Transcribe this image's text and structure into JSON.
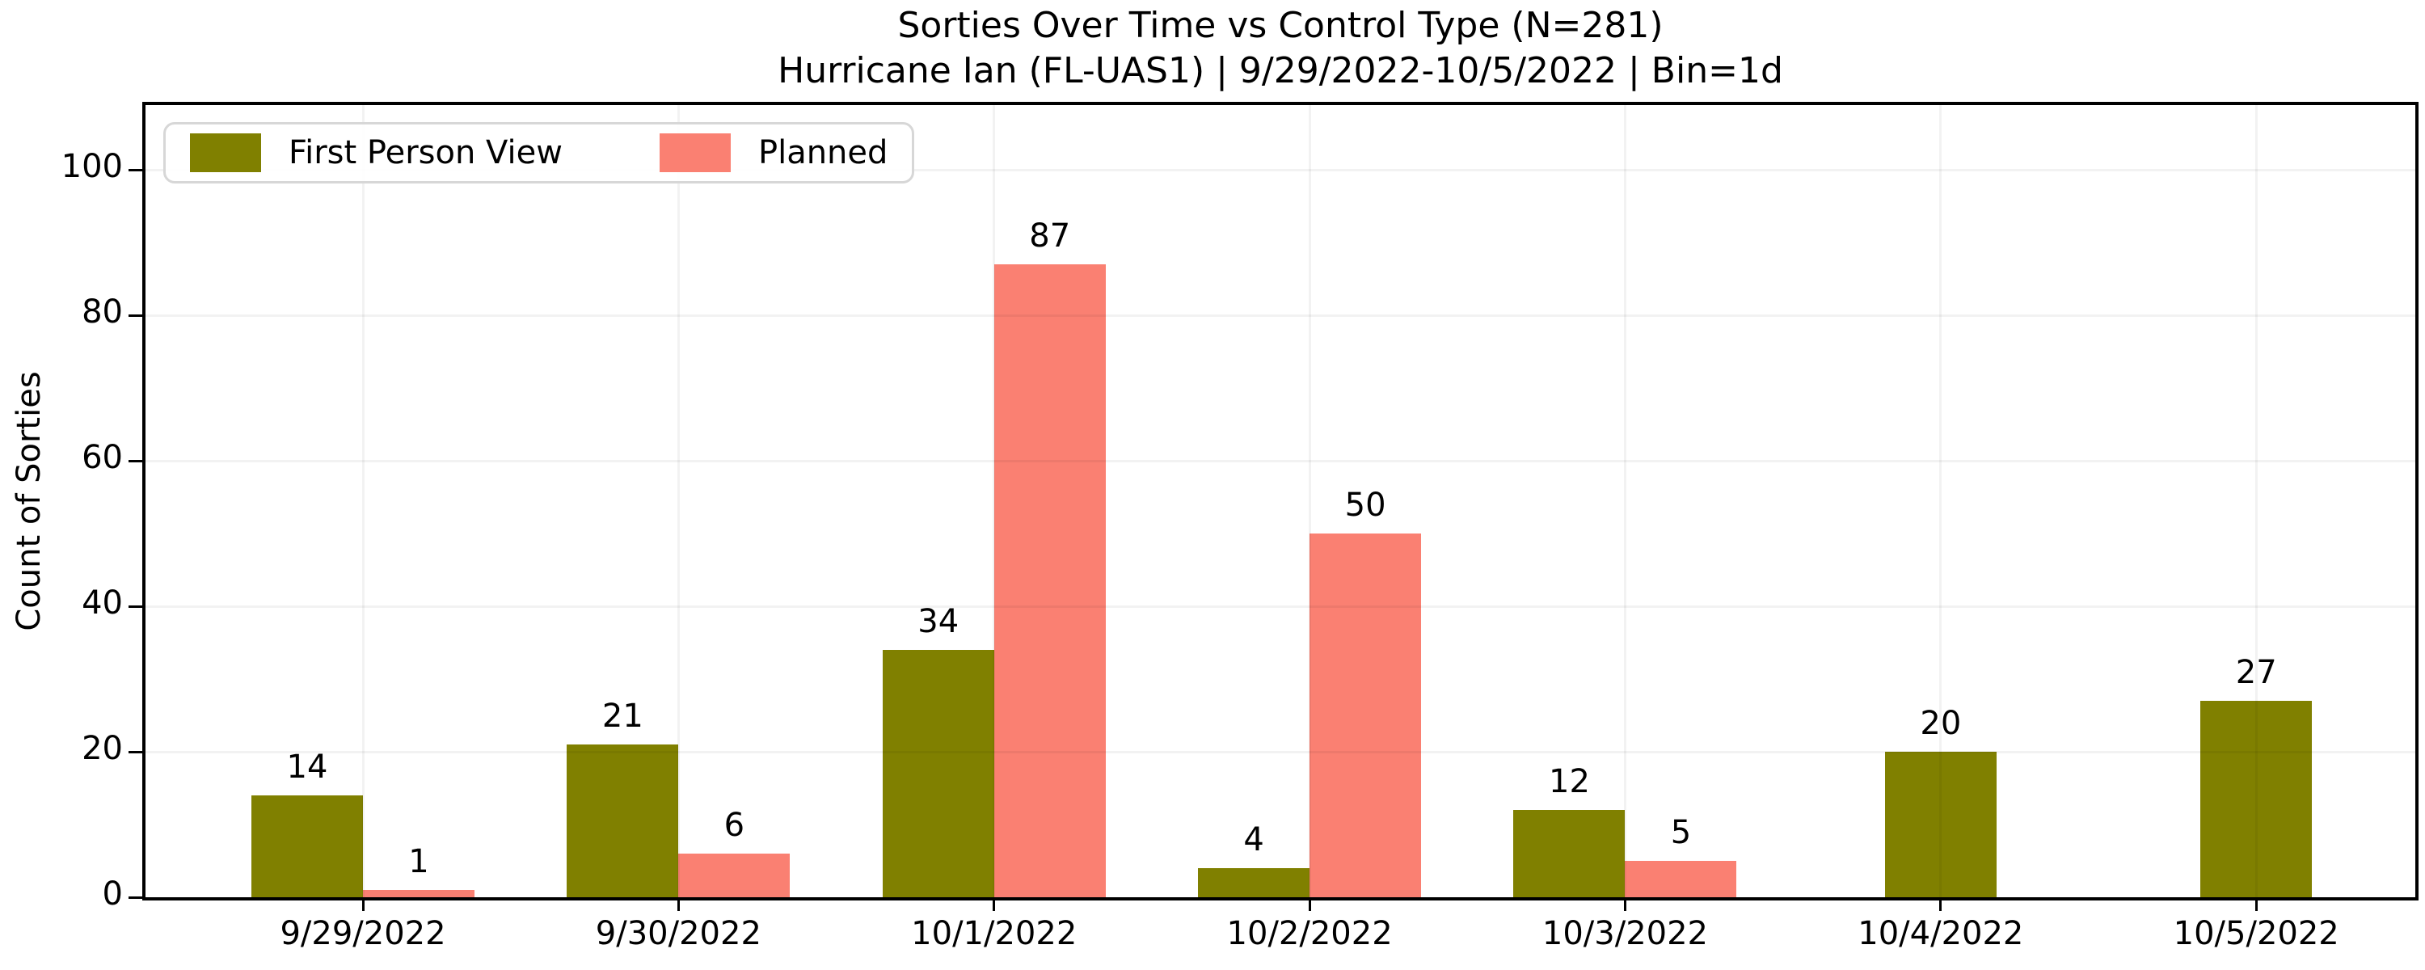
{
  "chart_data": {
    "type": "bar",
    "title": "Sorties Over Time vs Control Type (N=281)",
    "subtitle": "Hurricane Ian (FL-UAS1) | 9/29/2022-10/5/2022 | Bin=1d",
    "ylabel": "Count of Sorties",
    "xlabel": "",
    "categories": [
      "9/29/2022",
      "9/30/2022",
      "10/1/2022",
      "10/2/2022",
      "10/3/2022",
      "10/4/2022",
      "10/5/2022"
    ],
    "series": [
      {
        "name": "First Person View",
        "color": "#808000",
        "values": [
          14,
          21,
          34,
          4,
          12,
          20,
          27
        ]
      },
      {
        "name": "Planned",
        "color": "#FA8072",
        "values": [
          1,
          6,
          87,
          50,
          5,
          null,
          null
        ]
      }
    ],
    "total_n": 281,
    "yticks": [
      0,
      20,
      40,
      60,
      80,
      100
    ],
    "ylim": [
      0,
      109
    ],
    "grid": true,
    "bar_value_labels": true,
    "legend_position": "top-left",
    "legend_items": [
      {
        "label": "First Person View",
        "color": "#808000"
      },
      {
        "label": "Planned",
        "color": "#FA8072"
      }
    ]
  }
}
